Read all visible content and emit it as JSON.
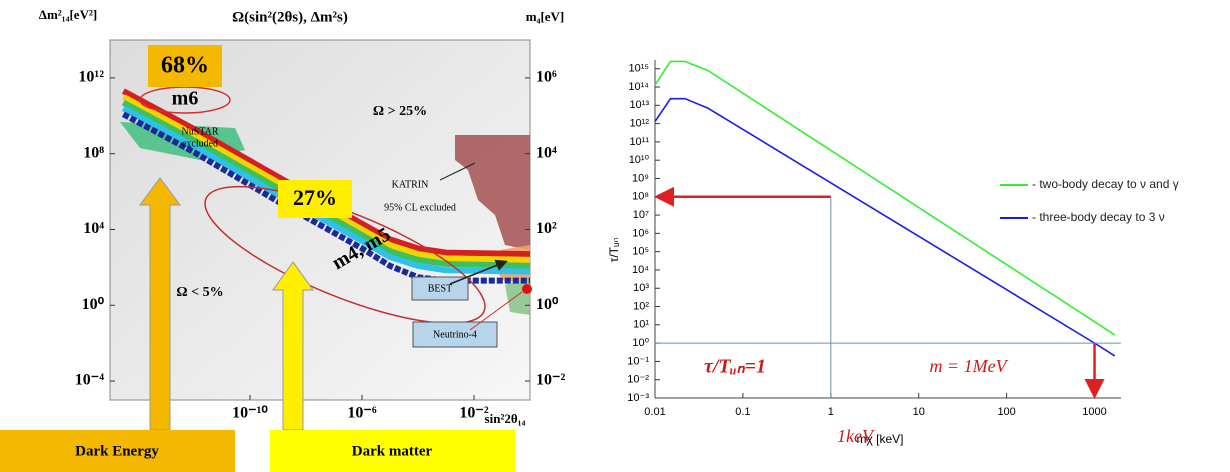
{
  "chart_data": [
    {
      "type": "line",
      "title": "Ω(sin²(2θs), Δm²s)",
      "y_label": "Δm²₁₄[eV²]",
      "y2_label": "m₄[eV]",
      "x_label": "sin²2θ₁₄",
      "log_scale": true,
      "xlim": [
        1e-15,
        1
      ],
      "ylim": [
        1e-05,
        100000000000000.0
      ],
      "y2lim": [
        0.003162,
        10000000
      ],
      "xticks": [
        {
          "value": 1e-10,
          "label": "10⁻¹⁰"
        },
        {
          "value": 1e-06,
          "label": "10⁻⁶"
        },
        {
          "value": 0.01,
          "label": "10⁻²"
        }
      ],
      "yticks": [
        {
          "value": 0.0001,
          "label": "10⁻⁴"
        },
        {
          "value": 1,
          "label": "10⁰"
        },
        {
          "value": 10000,
          "label": "10⁴"
        },
        {
          "value": 100000000,
          "label": "10⁸"
        },
        {
          "value": 1000000000000,
          "label": "10¹²"
        }
      ],
      "y2ticks": [
        {
          "value": 0.01,
          "label": "10⁻²"
        },
        {
          "value": 1,
          "label": "10⁰"
        },
        {
          "value": 100,
          "label": "10²"
        },
        {
          "value": 10000,
          "label": "10⁴"
        },
        {
          "value": 1000000,
          "label": "10⁶"
        }
      ],
      "x": [
        3e-15,
        1e-12,
        1e-09,
        1e-06,
        1e-05,
        0.0001,
        0.001,
        1
      ],
      "series": [
        {
          "color": "#d42020",
          "values": [
            200000000000.0,
            2000000000.0,
            6000000.0,
            20000,
            3000,
            1000,
            600,
            500
          ]
        },
        {
          "color": "#f2d400",
          "values": [
            100000000000.0,
            1000000000.0,
            3000000.0,
            10000,
            1500,
            500,
            300,
            250
          ]
        },
        {
          "color": "#3cc060",
          "values": [
            50000000000.0,
            500000000.0,
            1500000.0,
            5000,
            700,
            250,
            150,
            120
          ]
        },
        {
          "color": "#30c0e8",
          "values": [
            25000000000.0,
            250000000.0,
            700000.0,
            2500,
            350,
            120,
            70,
            60
          ]
        },
        {
          "color": "#1a2a9a",
          "values": [
            12000000000.0,
            120000000.0,
            300000.0,
            1000,
            120,
            30,
            20,
            20
          ]
        }
      ],
      "annotations": [
        "68%",
        "m6",
        "Ω > 25%",
        "NuSTAR",
        "excluded",
        "KATRIN",
        "95% CL excluded",
        "27%",
        "m4, m5",
        "BEST",
        "Ω < 5%",
        "Neutrino-4",
        "Dark Energy",
        "Dark matter"
      ]
    },
    {
      "type": "line",
      "y_label": "τ/Tᵤₙ",
      "x_label": "mχ [keV]",
      "log_scale": true,
      "xlim": [
        0.01,
        2000
      ],
      "ylim": [
        0.001,
        3000000000000000.0
      ],
      "xticks": [
        0.01,
        0.1,
        1,
        10,
        100,
        1000
      ],
      "yticks": [
        {
          "value": 0.001,
          "label": "10⁻³"
        },
        {
          "value": 0.01,
          "label": "10⁻²"
        },
        {
          "value": 0.1,
          "label": "10⁻¹"
        },
        {
          "value": 1,
          "label": "10⁰"
        },
        {
          "value": 10,
          "label": "10¹"
        },
        {
          "value": 100,
          "label": "10²"
        },
        {
          "value": 1000,
          "label": "10³"
        },
        {
          "value": 10000,
          "label": "10⁴"
        },
        {
          "value": 100000,
          "label": "10⁵"
        },
        {
          "value": 1000000,
          "label": "10⁶"
        },
        {
          "value": 10000000,
          "label": "10⁷"
        },
        {
          "value": 100000000,
          "label": "10⁸"
        },
        {
          "value": 1000000000,
          "label": "10⁹"
        },
        {
          "value": 10000000000,
          "label": "10¹⁰"
        },
        {
          "value": 100000000000,
          "label": "10¹¹"
        },
        {
          "value": 1000000000000,
          "label": "10¹²"
        },
        {
          "value": 10000000000000,
          "label": "10¹³"
        },
        {
          "value": 100000000000000,
          "label": "10¹⁴"
        },
        {
          "value": 1000000000000000,
          "label": "10¹⁵"
        }
      ],
      "series": [
        {
          "name": "- two-body decay to ν and γ",
          "color": "#33ee33",
          "x": [
            0.01,
            0.015,
            0.022,
            0.04,
            1700
          ],
          "values": [
            130000000000000.0,
            2500000000000000.0,
            2500000000000000.0,
            800000000000000.0,
            2.8
          ]
        },
        {
          "name": "- three-body decay to 3 ν",
          "color": "#1a1aee",
          "x": [
            0.01,
            0.015,
            0.022,
            0.04,
            1000,
            1700
          ],
          "values": [
            1300000000000.0,
            23000000000000.0,
            23000000000000.0,
            7000000000000.0,
            1,
            0.2
          ]
        }
      ],
      "guides": {
        "x": [
          1,
          1000
        ],
        "y": [
          1,
          100000000
        ]
      },
      "annotations": [
        "τ/Tᵤₙ=1",
        "m = 1MeV",
        "1keV"
      ]
    }
  ]
}
